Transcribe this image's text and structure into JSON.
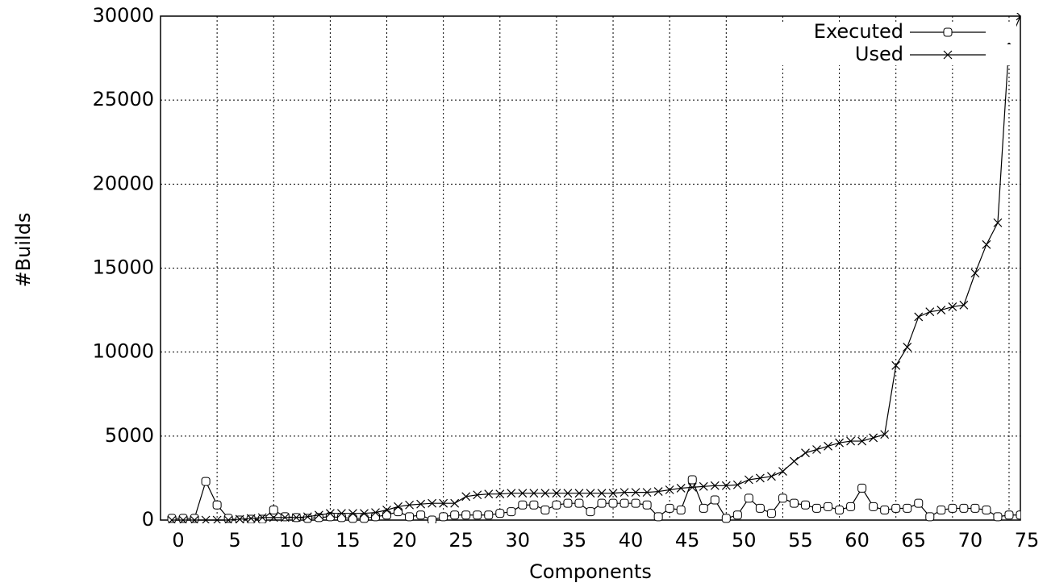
{
  "chart_data": {
    "type": "line",
    "xlabel": "Components",
    "ylabel": "#Builds",
    "x": [
      1,
      2,
      3,
      4,
      5,
      6,
      7,
      8,
      9,
      10,
      11,
      12,
      13,
      14,
      15,
      16,
      17,
      18,
      19,
      20,
      21,
      22,
      23,
      24,
      25,
      26,
      27,
      28,
      29,
      30,
      31,
      32,
      33,
      34,
      35,
      36,
      37,
      38,
      39,
      40,
      41,
      42,
      43,
      44,
      45,
      46,
      47,
      48,
      49,
      50,
      51,
      52,
      53,
      54,
      55,
      56,
      57,
      58,
      59,
      60,
      61,
      62,
      63,
      64,
      65,
      66,
      67,
      68,
      69,
      70,
      71,
      72,
      73,
      74,
      75,
      76
    ],
    "series": [
      {
        "name": "Executed",
        "color": "#000000",
        "marker": "square",
        "values": [
          100,
          100,
          100,
          2300,
          900,
          100,
          0,
          50,
          50,
          600,
          200,
          150,
          100,
          150,
          200,
          150,
          100,
          100,
          200,
          300,
          500,
          200,
          300,
          0,
          200,
          300,
          300,
          300,
          300,
          400,
          500,
          900,
          900,
          600,
          900,
          1000,
          1000,
          500,
          1000,
          1000,
          1000,
          1000,
          900,
          200,
          700,
          600,
          2400,
          700,
          1200,
          100,
          300,
          1300,
          700,
          400,
          1300,
          1000,
          900,
          700,
          800,
          600,
          800,
          1900,
          800,
          600,
          700,
          700,
          1000,
          200,
          600,
          700,
          700,
          700,
          600,
          200,
          300,
          300
        ]
      },
      {
        "name": "Used",
        "color": "#000000",
        "marker": "cross",
        "values": [
          0,
          0,
          0,
          0,
          0,
          0,
          50,
          100,
          150,
          150,
          150,
          150,
          200,
          300,
          400,
          400,
          400,
          400,
          450,
          600,
          800,
          900,
          950,
          1000,
          1000,
          1000,
          1400,
          1500,
          1550,
          1550,
          1600,
          1600,
          1600,
          1600,
          1600,
          1600,
          1600,
          1600,
          1600,
          1600,
          1650,
          1650,
          1650,
          1700,
          1800,
          1900,
          1950,
          2000,
          2050,
          2050,
          2100,
          2400,
          2500,
          2600,
          2900,
          3500,
          4000,
          4200,
          4400,
          4600,
          4700,
          4700,
          4900,
          5100,
          9200,
          10300,
          12100,
          12400,
          12500,
          12700,
          12800,
          14700,
          16400,
          17700,
          28400,
          30000
        ]
      }
    ],
    "xlim": [
      0,
      76
    ],
    "xticks": [
      0,
      5,
      10,
      15,
      20,
      25,
      30,
      35,
      40,
      45,
      50,
      55,
      60,
      65,
      70,
      75
    ],
    "ylim": [
      0,
      30000
    ],
    "yticks": [
      0,
      5000,
      10000,
      15000,
      20000,
      25000,
      30000
    ],
    "grid": true,
    "legend": "top-right"
  }
}
